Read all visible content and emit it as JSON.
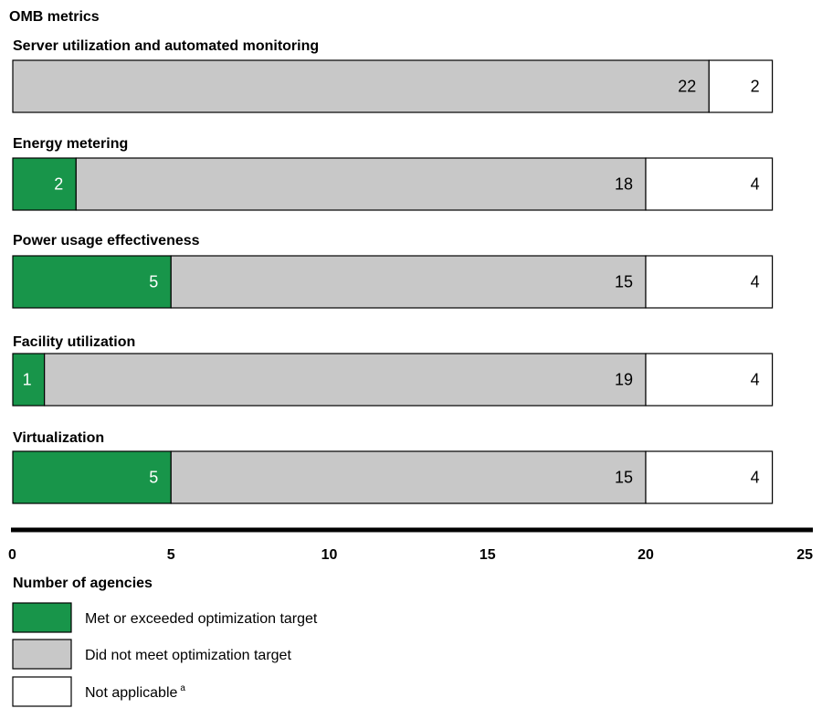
{
  "chart_data": {
    "type": "bar",
    "stacked": true,
    "orientation": "horizontal",
    "title": "OMB metrics",
    "categories": [
      "Server utilization and automated monitoring",
      "Energy metering",
      "Power usage effectiveness",
      "Facility utilization",
      "Virtualization"
    ],
    "series": [
      {
        "name": "Met or exceeded optimization target",
        "color": "#18954a",
        "values": [
          0,
          2,
          5,
          1,
          5
        ]
      },
      {
        "name": "Did not meet optimization target",
        "color": "#c8c8c8",
        "values": [
          22,
          18,
          15,
          19,
          15
        ]
      },
      {
        "name": "Not applicable",
        "name_superscript": "a",
        "color": "#ffffff",
        "values": [
          2,
          4,
          4,
          4,
          4
        ]
      }
    ],
    "xlabel": "Number of agencies",
    "xlim": [
      0,
      25
    ],
    "xticks": [
      0,
      5,
      10,
      15,
      20,
      25
    ],
    "grid": false,
    "legend_position": "bottom-left"
  }
}
